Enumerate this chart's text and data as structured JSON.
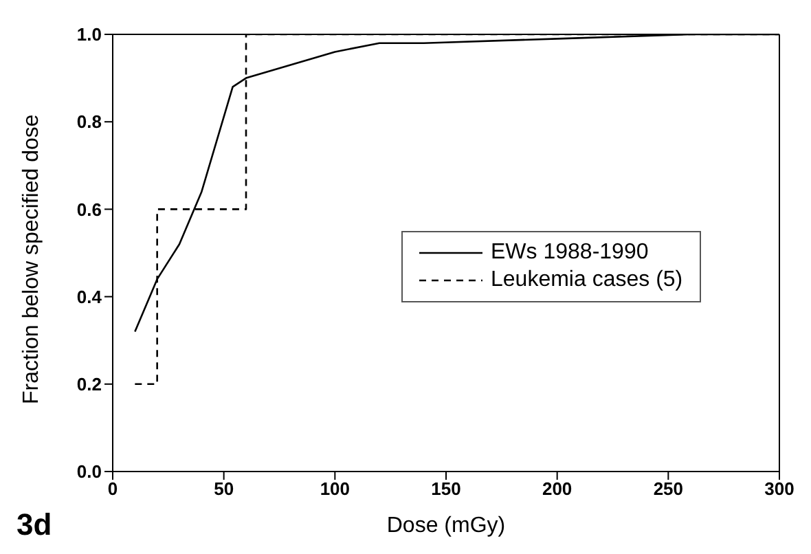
{
  "chart_data": {
    "type": "line",
    "xlabel": "Dose (mGy)",
    "ylabel": "Fraction below specified dose",
    "annotations": [
      "3d"
    ],
    "xlim": [
      0,
      300
    ],
    "xticks": [
      0,
      50,
      100,
      150,
      200,
      250,
      300
    ],
    "ylim": [
      0,
      1
    ],
    "yticks": [
      {
        "value": 0,
        "label": "0.0"
      },
      0.2,
      0.4,
      0.6,
      0.8,
      {
        "value": 1,
        "label": "1.0"
      }
    ],
    "grid": false,
    "legend": "right",
    "marker": "none",
    "series": [
      {
        "name": "EWs 1988-1990",
        "color": "#000000",
        "line_style": "solid",
        "x": [
          10,
          20,
          30,
          40,
          54,
          60,
          80,
          100,
          120,
          140,
          200,
          260,
          300
        ],
        "values": [
          0.32,
          0.44,
          0.52,
          0.64,
          0.88,
          0.9,
          0.93,
          0.96,
          0.98,
          0.98,
          0.99,
          1.0,
          1.0
        ]
      },
      {
        "name": "Leukemia cases (5)",
        "type": "step",
        "color": "#000000",
        "line_style": "dashed",
        "x": [
          10,
          20,
          60,
          300
        ],
        "values": [
          0.2,
          0.6,
          1.0,
          1.0
        ]
      }
    ]
  }
}
